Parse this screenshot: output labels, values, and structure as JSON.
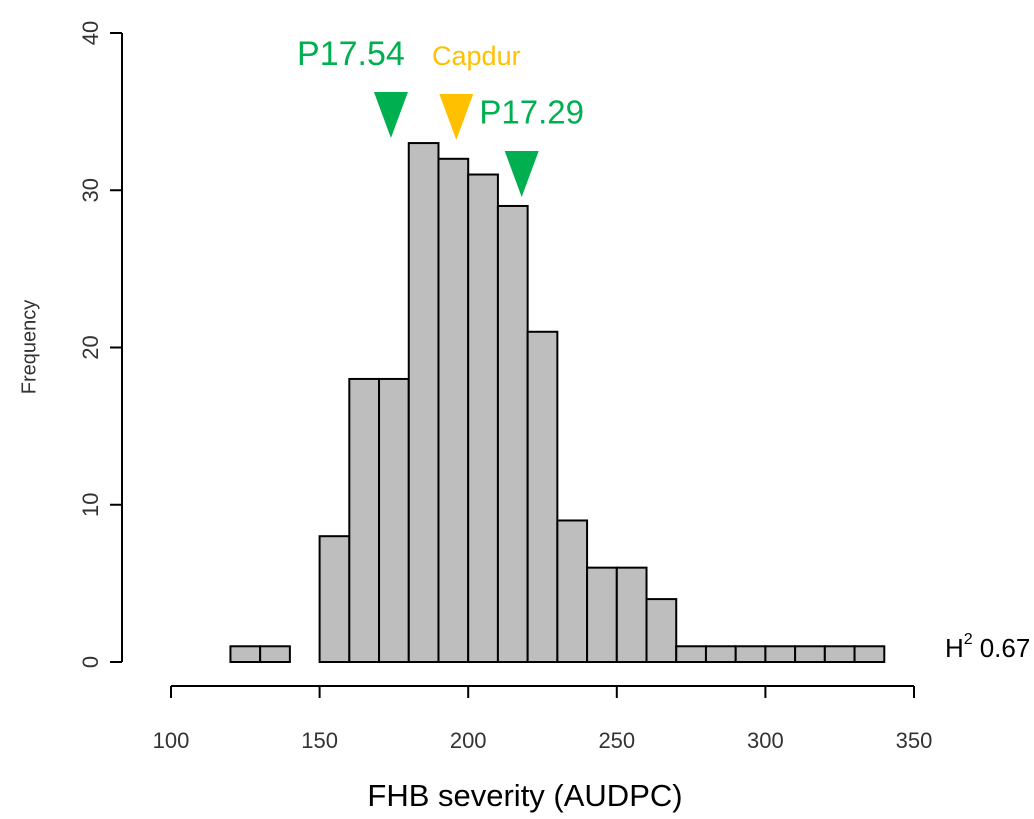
{
  "chart_data": {
    "type": "histogram",
    "xlabel": "FHB severity (AUDPC)",
    "ylabel": "Frequency",
    "bins": [
      120,
      130,
      140,
      150,
      160,
      170,
      180,
      190,
      200,
      210,
      220,
      230,
      240,
      250,
      260,
      270,
      280,
      290,
      300,
      310,
      320,
      330,
      340
    ],
    "values": [
      1,
      1,
      0,
      8,
      18,
      18,
      33,
      32,
      31,
      29,
      21,
      9,
      6,
      6,
      4,
      1,
      1,
      1,
      1,
      1,
      1,
      1
    ],
    "color": "#bebebe",
    "xlim": [
      100,
      350
    ],
    "xticks": [
      100,
      150,
      200,
      250,
      300,
      350
    ],
    "ylim": [
      0,
      40
    ],
    "yticks": [
      0,
      10,
      20,
      30,
      40
    ],
    "annotations": [
      {
        "text": "P17.54",
        "x": 174,
        "color": "#00b050"
      },
      {
        "text": "Capdur",
        "x": 196,
        "color": "#ffc000"
      },
      {
        "text": "P17.29",
        "x": 218,
        "color": "#00b050"
      }
    ],
    "heritability": {
      "symbol": "H",
      "superscript": "2",
      "value": 0.67
    }
  }
}
